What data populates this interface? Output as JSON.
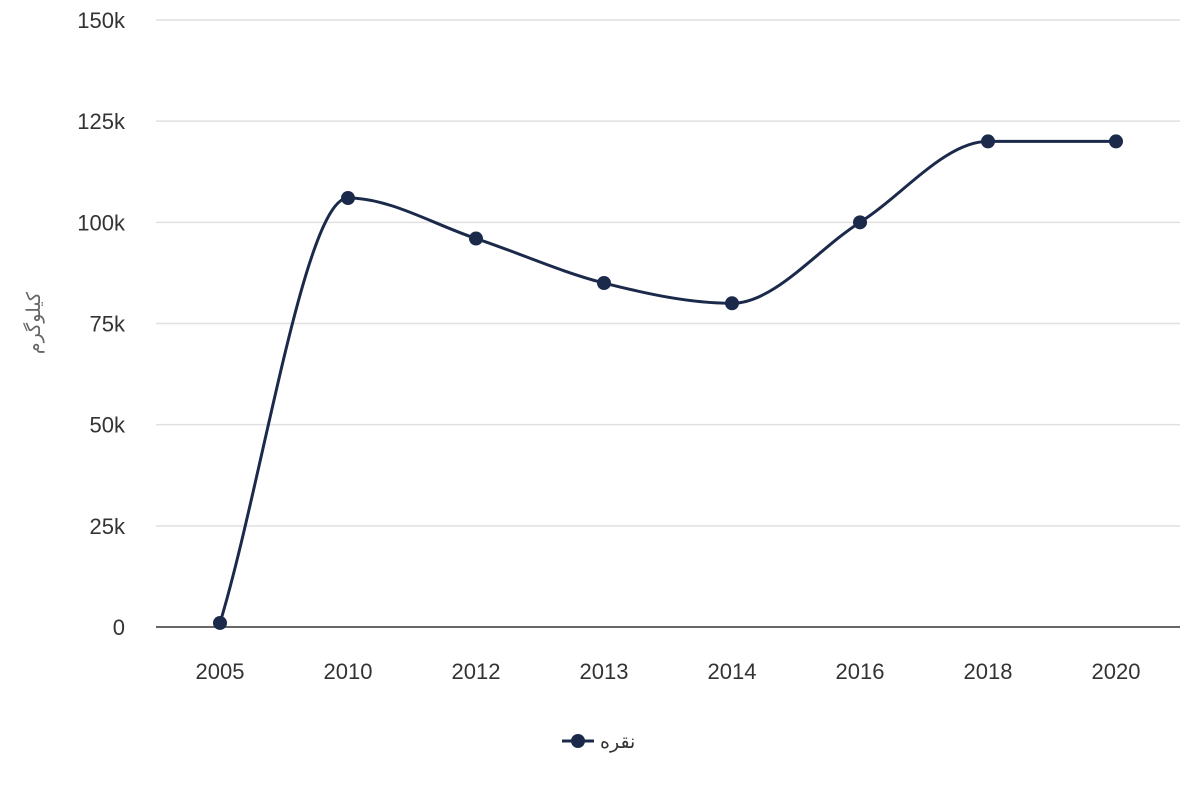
{
  "chart_data": {
    "type": "line",
    "title": "",
    "xlabel": "",
    "ylabel": "کیلوگرم",
    "categories": [
      "2005",
      "2010",
      "2012",
      "2013",
      "2014",
      "2016",
      "2018",
      "2020"
    ],
    "series": [
      {
        "name": "نقره",
        "values": [
          1000,
          106000,
          96000,
          85000,
          80000,
          100000,
          120000,
          120000
        ]
      }
    ],
    "ylim": [
      0,
      150000
    ],
    "yticks": [
      0,
      25000,
      50000,
      75000,
      100000,
      125000,
      150000
    ],
    "ytick_labels": [
      "0",
      "25k",
      "50k",
      "75k",
      "100k",
      "125k",
      "150k"
    ],
    "grid": true,
    "legend_position": "bottom",
    "colors": {
      "series": "#1b2a4a",
      "grid": "#e0e0e0",
      "baseline": "#333333"
    }
  }
}
